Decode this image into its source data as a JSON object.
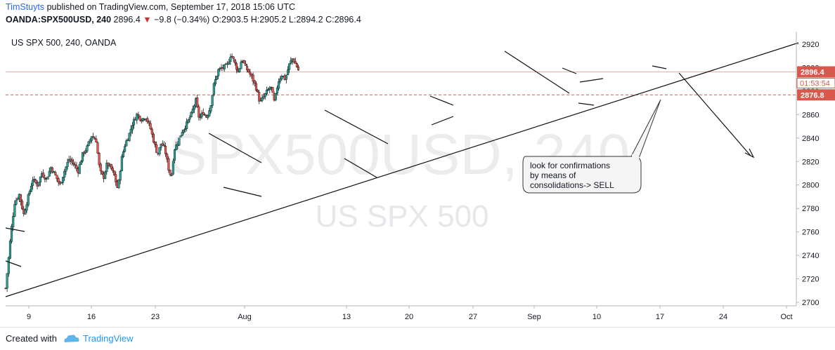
{
  "header": {
    "author": "TimStuyts",
    "published": " published on TradingView.com, September 17, 2018 15:06 UTC",
    "symbol": "OANDA:SPX500USD, 240",
    "last": "2896.4",
    "arrow": "▼",
    "change": "−9.8 (−0.34%)",
    "ohlc": "O:2903.5 H:2905.2 L:2894.2 C:2896.4"
  },
  "legend": {
    "title": "US SPX 500, 240, OANDA"
  },
  "watermark": {
    "main": "SPX500USD, 240",
    "sub": "US SPX 500"
  },
  "note": {
    "lines": [
      "look for confirmations",
      "by means of",
      "consolidations-> SELL"
    ]
  },
  "footer": {
    "created": "Created with",
    "brand": "TradingView"
  },
  "colors": {
    "up": "#26a69a",
    "down": "#ef5350",
    "axis_price": "#e0554c",
    "user": "#2962ff"
  },
  "chart_data": {
    "type": "candlestick",
    "title": "US SPX 500, 240, OANDA",
    "ylim": [
      2700,
      2925
    ],
    "y_ticks": [
      2700,
      2720,
      2740,
      2760,
      2780,
      2800,
      2820,
      2840,
      2860,
      2880,
      2900,
      2920
    ],
    "x_ticks": [
      "9",
      "16",
      "23",
      "Aug",
      "13",
      "20",
      "27",
      "Sep",
      "10",
      "17",
      "24",
      "Oct"
    ],
    "last_price": 2896.4,
    "countdown": "01:53:54",
    "level_price": 2876.8,
    "close_path": [
      [
        0,
        2712
      ],
      [
        0.3,
        2735
      ],
      [
        0.6,
        2760
      ],
      [
        1.0,
        2785
      ],
      [
        1.5,
        2792
      ],
      [
        2.0,
        2775
      ],
      [
        2.5,
        2790
      ],
      [
        3.0,
        2805
      ],
      [
        3.5,
        2800
      ],
      [
        4.0,
        2810
      ],
      [
        4.5,
        2805
      ],
      [
        5.0,
        2815
      ],
      [
        5.5,
        2808
      ],
      [
        6.0,
        2800
      ],
      [
        6.5,
        2812
      ],
      [
        7.0,
        2822
      ],
      [
        7.5,
        2818
      ],
      [
        8.0,
        2812
      ],
      [
        8.5,
        2826
      ],
      [
        9.0,
        2832
      ],
      [
        9.5,
        2842
      ],
      [
        10.0,
        2838
      ],
      [
        10.4,
        2812
      ],
      [
        10.8,
        2806
      ],
      [
        11.2,
        2818
      ],
      [
        11.6,
        2815
      ],
      [
        12.0,
        2808
      ],
      [
        12.4,
        2796
      ],
      [
        12.8,
        2822
      ],
      [
        13.2,
        2835
      ],
      [
        13.6,
        2842
      ],
      [
        14.0,
        2852
      ],
      [
        14.5,
        2860
      ],
      [
        15.0,
        2856
      ],
      [
        15.5,
        2858
      ],
      [
        16.0,
        2848
      ],
      [
        16.4,
        2836
      ],
      [
        16.8,
        2826
      ],
      [
        17.2,
        2836
      ],
      [
        17.6,
        2830
      ],
      [
        18.0,
        2814
      ],
      [
        18.3,
        2806
      ],
      [
        18.6,
        2830
      ],
      [
        19.0,
        2836
      ],
      [
        19.5,
        2846
      ],
      [
        20.0,
        2852
      ],
      [
        20.5,
        2860
      ],
      [
        21.0,
        2872
      ],
      [
        21.4,
        2856
      ],
      [
        21.8,
        2862
      ],
      [
        22.2,
        2858
      ],
      [
        22.6,
        2866
      ],
      [
        23.0,
        2885
      ],
      [
        23.5,
        2898
      ],
      [
        24.0,
        2900
      ],
      [
        24.5,
        2902
      ],
      [
        24.9,
        2912
      ],
      [
        25.3,
        2904
      ],
      [
        25.7,
        2896
      ],
      [
        26.1,
        2908
      ],
      [
        26.5,
        2900
      ],
      [
        26.9,
        2896
      ],
      [
        27.3,
        2890
      ],
      [
        27.7,
        2882
      ],
      [
        28.1,
        2870
      ],
      [
        28.5,
        2875
      ],
      [
        28.9,
        2880
      ],
      [
        29.3,
        2884
      ],
      [
        29.7,
        2870
      ],
      [
        30.1,
        2888
      ],
      [
        30.5,
        2894
      ],
      [
        30.9,
        2890
      ],
      [
        31.3,
        2902
      ],
      [
        31.7,
        2908
      ],
      [
        32.1,
        2902
      ],
      [
        32.4,
        2897
      ]
    ]
  }
}
